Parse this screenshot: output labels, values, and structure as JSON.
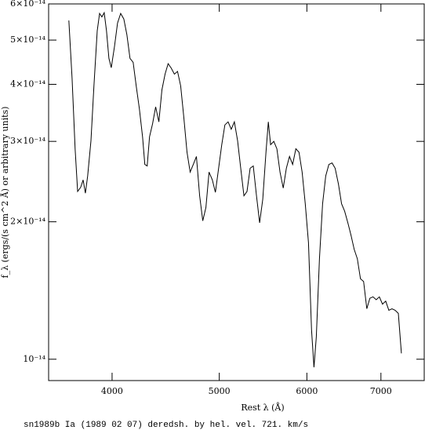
{
  "chart_data": {
    "type": "line",
    "x_label": "Rest λ (Å)",
    "y_label": "f_λ (ergs/(s cm^2 Å) or arbitrary units)",
    "caption": "sn1989b Ia (1989 02 07) deredsh. by hel. vel.   721. km/s",
    "xlog": true,
    "ylog": true,
    "xlim": [
      3505,
      7660
    ],
    "ylim": [
      8.98e-15,
      6e-14
    ],
    "xticks": [
      4000,
      5000,
      6000,
      7000
    ],
    "yticks": [
      {
        "value": 1e-14,
        "label": "10⁻¹⁴"
      },
      {
        "value": 2e-14,
        "label": "2×10⁻¹⁴"
      },
      {
        "value": 3e-14,
        "label": "3×10⁻¹⁴"
      },
      {
        "value": 4e-14,
        "label": "4×10⁻¹⁴"
      },
      {
        "value": 5e-14,
        "label": "5×10⁻¹⁴"
      },
      {
        "value": 6e-14,
        "label": "6×10⁻¹⁴"
      }
    ],
    "color": "#000000",
    "x": [
      3656,
      3680,
      3704,
      3723,
      3747,
      3766,
      3784,
      3802,
      3828,
      3852,
      3878,
      3897,
      3916,
      3935,
      3954,
      3974,
      3993,
      4020,
      4046,
      4072,
      4099,
      4125,
      4152,
      4179,
      4206,
      4234,
      4262,
      4282,
      4303,
      4324,
      4352,
      4380,
      4409,
      4437,
      4466,
      4495,
      4524,
      4554,
      4584,
      4614,
      4644,
      4675,
      4706,
      4737,
      4768,
      4800,
      4831,
      4863,
      4895,
      4928,
      4960,
      4993,
      5026,
      5059,
      5093,
      5126,
      5160,
      5194,
      5228,
      5263,
      5297,
      5332,
      5367,
      5403,
      5438,
      5474,
      5510,
      5537,
      5564,
      5601,
      5637,
      5674,
      5712,
      5749,
      5787,
      5825,
      5864,
      5902,
      5941,
      5980,
      6020,
      6059,
      6089,
      6119,
      6159,
      6200,
      6240,
      6281,
      6323,
      6364,
      6407,
      6449,
      6491,
      6534,
      6577,
      6621,
      6664,
      6708,
      6752,
      6797,
      6841,
      6886,
      6932,
      6977,
      7023,
      7070,
      7116,
      7163,
      7210,
      7258,
      7305
    ],
    "values": [
      5.52e-14,
      4.13e-14,
      2.89e-14,
      2.33e-14,
      2.38e-14,
      2.47e-14,
      2.31e-14,
      2.52e-14,
      3.01e-14,
      3.97e-14,
      5.24e-14,
      5.72e-14,
      5.62e-14,
      5.74e-14,
      5.24e-14,
      4.56e-14,
      4.35e-14,
      4.84e-14,
      5.45e-14,
      5.72e-14,
      5.56e-14,
      5.14e-14,
      4.56e-14,
      4.47e-14,
      3.97e-14,
      3.53e-14,
      3.07e-14,
      2.67e-14,
      2.65e-14,
      3.07e-14,
      3.28e-14,
      3.57e-14,
      3.31e-14,
      3.89e-14,
      4.21e-14,
      4.44e-14,
      4.34e-14,
      4.21e-14,
      4.27e-14,
      3.97e-14,
      3.39e-14,
      2.84e-14,
      2.57e-14,
      2.67e-14,
      2.78e-14,
      2.28e-14,
      2.01e-14,
      2.15e-14,
      2.57e-14,
      2.47e-14,
      2.32e-14,
      2.62e-14,
      2.95e-14,
      3.26e-14,
      3.31e-14,
      3.19e-14,
      3.31e-14,
      3.01e-14,
      2.62e-14,
      2.28e-14,
      2.33e-14,
      2.62e-14,
      2.65e-14,
      2.28e-14,
      1.99e-14,
      2.24e-14,
      2.84e-14,
      3.31e-14,
      2.95e-14,
      3e-14,
      2.89e-14,
      2.57e-14,
      2.37e-14,
      2.62e-14,
      2.78e-14,
      2.67e-14,
      2.89e-14,
      2.84e-14,
      2.57e-14,
      2.19e-14,
      1.8e-14,
      1.16e-14,
      9.6e-15,
      1.12e-14,
      1.66e-14,
      2.19e-14,
      2.52e-14,
      2.67e-14,
      2.69e-14,
      2.62e-14,
      2.42e-14,
      2.19e-14,
      2.11e-14,
      1.99e-14,
      1.87e-14,
      1.74e-14,
      1.66e-14,
      1.5e-14,
      1.48e-14,
      1.29e-14,
      1.36e-14,
      1.37e-14,
      1.35e-14,
      1.37e-14,
      1.32e-14,
      1.34e-14,
      1.28e-14,
      1.29e-14,
      1.28e-14,
      1.26e-14,
      1.03e-14
    ]
  }
}
